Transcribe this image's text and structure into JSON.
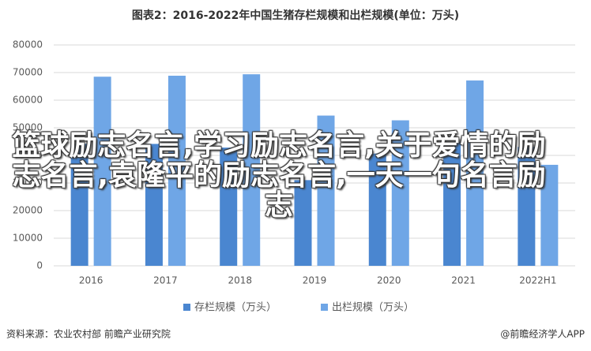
{
  "chart_data": {
    "type": "bar",
    "title": "图表2：2016-2022年中国生猪存栏规模和出栏规模(单位：万头)",
    "categories": [
      "2016",
      "2017",
      "2018",
      "2019",
      "2020",
      "2021",
      "2022H1"
    ],
    "series": [
      {
        "name": "存栏规模（万头）",
        "color": "#4a86d0",
        "values": [
          44209,
          44159,
          42817,
          31041,
          40650,
          44922,
          43057
        ]
      },
      {
        "name": "出栏规模（万头）",
        "color": "#6fa6e6",
        "values": [
          68502,
          68861,
          69382,
          54419,
          52704,
          67128,
          36587
        ]
      }
    ],
    "ylim": [
      0,
      80000
    ],
    "yticks": [
      0,
      10000,
      20000,
      30000,
      40000,
      50000,
      60000,
      70000,
      80000
    ],
    "grid": true,
    "legend": "bottom",
    "source": "资料来源：农业农村部 前瞻产业研究院",
    "credit": "@前瞻经济学人APP",
    "overlay": "篮球励志名言,学习励志名言,关于爱情的励志名言,袁隆平的励志名言,一天一句名言励志"
  }
}
